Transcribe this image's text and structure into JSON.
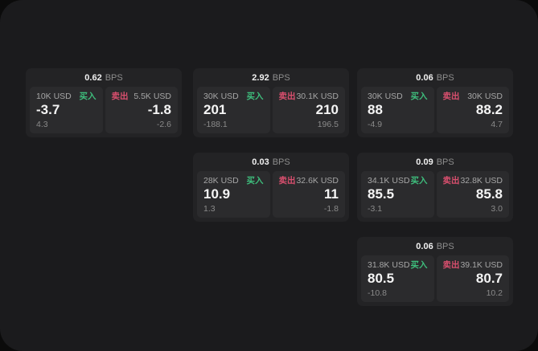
{
  "colors": {
    "buy_green": "#3ebd7c",
    "sell_red": "#d94f6e",
    "surface_bg": "#1b1b1d",
    "card_bg": "#232325",
    "pane_bg": "#2b2b2d"
  },
  "columns": [
    {
      "cards": [
        {
          "bps": "0.62",
          "unit": "BPS",
          "buy": {
            "amount": "10K USD",
            "tag": "买入",
            "value": "-3.7",
            "delta": "4.3"
          },
          "sell": {
            "tag": "卖出",
            "amount": "5.5K USD",
            "value": "-1.8",
            "delta": "-2.6"
          }
        }
      ]
    },
    {
      "cards": [
        {
          "bps": "2.92",
          "unit": "BPS",
          "buy": {
            "amount": "30K USD",
            "tag": "买入",
            "value": "201",
            "delta": "-188.1"
          },
          "sell": {
            "tag": "卖出",
            "amount": "30.1K USD",
            "value": "210",
            "delta": "196.5"
          }
        },
        {
          "bps": "0.03",
          "unit": "BPS",
          "buy": {
            "amount": "28K USD",
            "tag": "买入",
            "value": "10.9",
            "delta": "1.3"
          },
          "sell": {
            "tag": "卖出",
            "amount": "32.6K USD",
            "value": "11",
            "delta": "-1.8"
          }
        }
      ]
    },
    {
      "cards": [
        {
          "bps": "0.06",
          "unit": "BPS",
          "buy": {
            "amount": "30K USD",
            "tag": "买入",
            "value": "88",
            "delta": "-4.9"
          },
          "sell": {
            "tag": "卖出",
            "amount": "30K USD",
            "value": "88.2",
            "delta": "4.7"
          }
        },
        {
          "bps": "0.09",
          "unit": "BPS",
          "buy": {
            "amount": "34.1K USD",
            "tag": "买入",
            "value": "85.5",
            "delta": "-3.1"
          },
          "sell": {
            "tag": "卖出",
            "amount": "32.8K USD",
            "value": "85.8",
            "delta": "3.0"
          }
        },
        {
          "bps": "0.06",
          "unit": "BPS",
          "buy": {
            "amount": "31.8K USD",
            "tag": "买入",
            "value": "80.5",
            "delta": "-10.8"
          },
          "sell": {
            "tag": "卖出",
            "amount": "39.1K USD",
            "value": "80.7",
            "delta": "10.2"
          }
        }
      ]
    }
  ]
}
